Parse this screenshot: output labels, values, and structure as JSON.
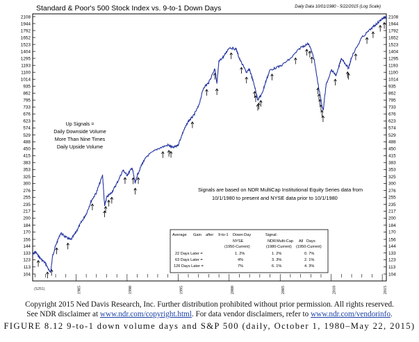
{
  "chart_data": {
    "type": "line",
    "title": "Standard & Poor's 500 Stock Index vs. 9-to-1 Down Days",
    "subtitle": "Daily Data 10/01/1980 - 5/22/2015 (Log Scale)",
    "yscale": "log",
    "ylim": [
      104,
      2108
    ],
    "xlim": [
      1980.75,
      2015.4
    ],
    "y_ticks": [
      2108,
      1944,
      1792,
      1652,
      1523,
      1404,
      1295,
      1193,
      1100,
      1014,
      935,
      862,
      795,
      733,
      676,
      623,
      574,
      529,
      488,
      450,
      415,
      383,
      353,
      325,
      300,
      276,
      255,
      235,
      217,
      200,
      184,
      170,
      156,
      144,
      133,
      123,
      113,
      104
    ],
    "x_tick_labels": [
      "1985",
      "1990",
      "1995",
      "2000",
      "2005",
      "2010",
      "2015"
    ],
    "series": [
      {
        "color": "#2233a0",
        "x": [
          1980.75,
          1981.0,
          1981.5,
          1982.0,
          1982.5,
          1982.7,
          1983.0,
          1983.5,
          1984.0,
          1984.5,
          1985.0,
          1985.5,
          1986.0,
          1986.5,
          1987.0,
          1987.6,
          1987.8,
          1988.0,
          1988.5,
          1989.0,
          1989.6,
          1990.0,
          1990.5,
          1990.8,
          1991.0,
          1991.5,
          1992.0,
          1993.0,
          1994.0,
          1994.5,
          1995.0,
          1995.5,
          1996.0,
          1996.5,
          1997.0,
          1997.5,
          1998.0,
          1998.6,
          1998.8,
          1999.0,
          1999.5,
          2000.0,
          2000.7,
          2001.0,
          2001.7,
          2002.0,
          2002.5,
          2002.8,
          2003.2,
          2003.6,
          2004.0,
          2005.0,
          2006.0,
          2007.0,
          2007.8,
          2008.3,
          2008.8,
          2009.2,
          2009.5,
          2010.0,
          2010.5,
          2011.0,
          2011.7,
          2012.0,
          2013.0,
          2014.0,
          2014.5,
          2015.0,
          2015.4
        ],
        "y": [
          130,
          135,
          125,
          118,
          105,
          128,
          145,
          168,
          160,
          155,
          170,
          190,
          210,
          245,
          270,
          330,
          230,
          255,
          270,
          300,
          350,
          330,
          360,
          300,
          330,
          380,
          415,
          450,
          470,
          455,
          470,
          550,
          620,
          660,
          740,
          920,
          975,
          1150,
          960,
          1250,
          1330,
          1470,
          1440,
          1290,
          1100,
          1140,
          930,
          800,
          850,
          990,
          1130,
          1180,
          1290,
          1470,
          1540,
          1300,
          900,
          700,
          950,
          1130,
          1060,
          1300,
          1150,
          1320,
          1650,
          1850,
          1950,
          2060,
          2108
        ]
      }
    ],
    "signal_arrows": [
      1981.3,
      1982.2,
      1982.6,
      1983.1,
      1984.2,
      1986.6,
      1987.8,
      1987.9,
      1988.2,
      1988.5,
      1989.8,
      1990.6,
      1990.8,
      1991.1,
      1993.5,
      1994.1,
      1994.3,
      1996.4,
      1997.8,
      1998.6,
      1998.8,
      2000.2,
      2001.2,
      2001.7,
      2002.5,
      2002.6,
      2002.8,
      2002.9,
      2003.1,
      2004.2,
      2006.5,
      2007.6,
      2007.9,
      2008.1,
      2008.7,
      2008.8,
      2008.9,
      2009.0,
      2009.1,
      2009.2,
      2010.4,
      2011.6,
      2011.7,
      2012.4,
      2013.5,
      2014.1,
      2014.8,
      2015.2
    ],
    "annotation_left": [
      "Up Signals =",
      "Daily Downside Volume",
      "More Than Nine Times",
      "Daily Upside Volume"
    ],
    "annotation_right": [
      "Signals are based on NDR MultiCap Institutional Equity Series data from",
      "10/1/1980 to present and NYSE data prior to 10/1/1980"
    ],
    "table": {
      "header": [
        "Average",
        "Gain",
        "after",
        "9-to-1",
        "Down-Day",
        "Signal:"
      ],
      "col_headers": [
        "NYSE",
        "NDR",
        "Multi-Cap",
        "All",
        "Days"
      ],
      "col_sub": [
        "(1950-Current)",
        "(1980-Current)",
        "(1950-Current)"
      ],
      "rows": [
        {
          "label": "22 Days Later =",
          "nyse": "1. 2%",
          "ndr": "1. 2%",
          "all": "0. 7%"
        },
        {
          "label": "63 Days Later =",
          "nyse": "4%",
          "ndr": "3. 3%",
          "all": "2. 1%"
        },
        {
          "label": "126 Days Later =",
          "nyse": "7%",
          "ndr": "6. 1%",
          "all": "4. 3%"
        }
      ]
    },
    "chart_id": "(S251)"
  },
  "caption": {
    "line1": "Copyright 2015 Ned Davis Research, Inc. Further distribution prohibited without prior permission. All rights reserved.",
    "line2_pre": "See NDR disclaimer at ",
    "line2_link1": "www.ndr.com/copyright.html",
    "line2_mid": ". For data vendor disclaimers, refer to ",
    "line2_link2": "www.ndr.com/vendorinfo",
    "line2_post": ".",
    "figure": "FIGURE 8.12 9-to-1 down volume days and S&P 500 (daily, October 1, 1980–May 22, 2015)"
  }
}
